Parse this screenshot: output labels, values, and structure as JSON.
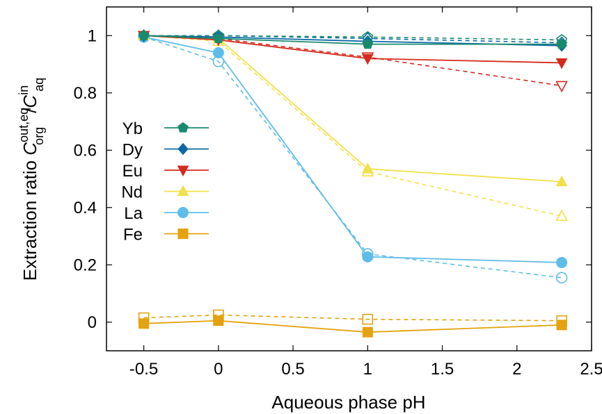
{
  "chart_data": {
    "type": "line",
    "xlabel": "Aqueous phase pH",
    "ylabel": {
      "prefix": "Extraction ratio ",
      "num_var": "C",
      "num_sub": "org",
      "num_sup": "out,eq",
      "slash": "/",
      "den_var": "C",
      "den_sub": "aq",
      "den_sup": "in"
    },
    "xlim": [
      -0.75,
      2.5
    ],
    "ylim": [
      -0.1,
      1.1
    ],
    "xticks": [
      -0.5,
      0,
      0.5,
      1,
      1.5,
      2,
      2.5
    ],
    "xtick_labels": [
      "-0.5",
      "0",
      "0.5",
      "1",
      "1.5",
      "2",
      "2.5"
    ],
    "yticks": [
      0,
      0.2,
      0.4,
      0.6,
      0.8,
      1
    ],
    "ytick_labels": [
      "0",
      "0.2",
      "0.4",
      "0.6",
      "0.8",
      "1"
    ],
    "legend_position": "left",
    "grid": false,
    "series": [
      {
        "name": "Yb",
        "color": "#1a8a6e",
        "marker": "pentagon",
        "solid": {
          "x": [
            -0.5,
            0,
            1,
            2.3
          ],
          "y": [
            1.0,
            0.99,
            0.97,
            0.97
          ]
        },
        "dashed": {
          "x": [
            -0.5,
            0,
            1,
            2.3
          ],
          "y": [
            1.0,
            1.0,
            0.995,
            0.985
          ]
        }
      },
      {
        "name": "Dy",
        "color": "#0b68a8",
        "marker": "diamond",
        "solid": {
          "x": [
            -0.5,
            0,
            1,
            2.3
          ],
          "y": [
            1.0,
            0.995,
            0.98,
            0.965
          ]
        },
        "dashed": {
          "x": [
            -0.5,
            0,
            1,
            2.3
          ],
          "y": [
            1.0,
            1.0,
            0.99,
            0.975
          ]
        }
      },
      {
        "name": "Eu",
        "color": "#d42b1e",
        "marker": "triangle-down",
        "solid": {
          "x": [
            -0.5,
            0,
            1,
            2.3
          ],
          "y": [
            1.0,
            0.985,
            0.92,
            0.905
          ]
        },
        "dashed": {
          "x": [
            -0.5,
            0,
            1,
            2.3
          ],
          "y": [
            1.0,
            0.99,
            0.925,
            0.825
          ]
        }
      },
      {
        "name": "Nd",
        "color": "#f2e04a",
        "marker": "triangle-up",
        "solid": {
          "x": [
            -0.5,
            0,
            1,
            2.3
          ],
          "y": [
            1.0,
            0.99,
            0.535,
            0.49
          ]
        },
        "dashed": {
          "x": [
            -0.5,
            0,
            1,
            2.3
          ],
          "y": [
            1.0,
            0.98,
            0.525,
            0.37
          ]
        }
      },
      {
        "name": "La",
        "color": "#5ebde8",
        "marker": "circle",
        "solid": {
          "x": [
            -0.5,
            0,
            1,
            2.3
          ],
          "y": [
            0.995,
            0.94,
            0.228,
            0.208
          ]
        },
        "dashed": {
          "x": [
            -0.5,
            0,
            1,
            2.3
          ],
          "y": [
            0.995,
            0.91,
            0.238,
            0.155
          ]
        }
      },
      {
        "name": "Fe",
        "color": "#e3a20e",
        "marker": "square",
        "solid": {
          "x": [
            -0.5,
            0,
            1,
            2.3
          ],
          "y": [
            -0.005,
            0.005,
            -0.035,
            -0.01
          ]
        },
        "dashed": {
          "x": [
            -0.5,
            0,
            1,
            2.3
          ],
          "y": [
            0.015,
            0.025,
            0.01,
            0.005
          ]
        }
      }
    ]
  }
}
